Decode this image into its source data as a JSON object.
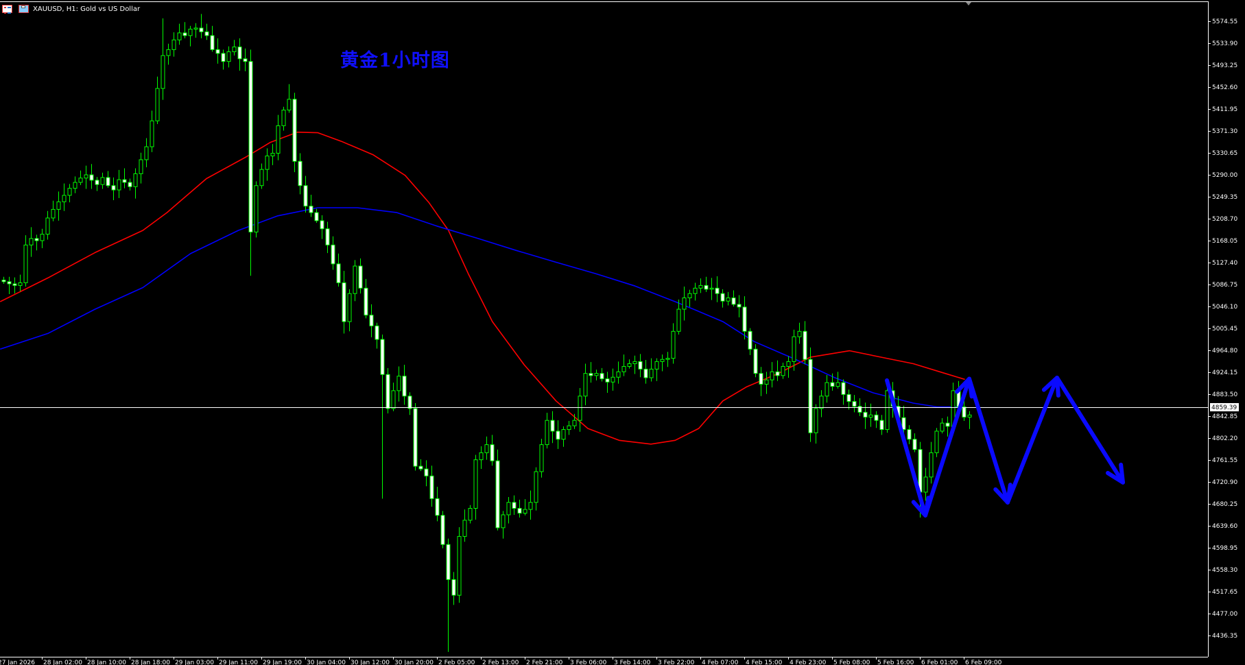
{
  "header": {
    "title": "XAUUSD, H1:  Gold vs US Dollar",
    "icons": [
      "chart-list-icon",
      "symbol-properties-icon"
    ]
  },
  "annotation_title": "黄金1小时图",
  "colors": {
    "background": "#000000",
    "bull_body": "#000000",
    "bear_body": "#ffffff",
    "candle_outline": "#00ff00",
    "ma_fast": "#ff0000",
    "ma_slow": "#0000ff",
    "annotation": "#0a0aff",
    "axis": "#ffffff"
  },
  "chart_data": {
    "type": "candlestick",
    "symbol": "XAUUSD",
    "timeframe": "H1",
    "grid": false,
    "current_price": "4859.39",
    "ylim": [
      4400,
      5600
    ],
    "y_ticks": [
      "5574.55",
      "5533.90",
      "5493.25",
      "5452.60",
      "5411.95",
      "5371.30",
      "5330.65",
      "5290.00",
      "5249.35",
      "5208.70",
      "5168.05",
      "5127.40",
      "5086.75",
      "5046.10",
      "5005.45",
      "4964.80",
      "4924.15",
      "4883.50",
      "4842.85",
      "4802.20",
      "4761.55",
      "4720.90",
      "4680.25",
      "4639.60",
      "4598.95",
      "4558.30",
      "4517.65",
      "4477.00",
      "4436.35"
    ],
    "x_first_label": "27 Jan 2026",
    "x_ticks": [
      "28 Jan 02:00",
      "28 Jan 10:00",
      "28 Jan 18:00",
      "29 Jan 03:00",
      "29 Jan 11:00",
      "29 Jan 19:00",
      "30 Jan 04:00",
      "30 Jan 12:00",
      "30 Jan 20:00",
      "2 Feb 05:00",
      "2 Feb 13:00",
      "2 Feb 21:00",
      "3 Feb 06:00",
      "3 Feb 14:00",
      "3 Feb 22:00",
      "4 Feb 07:00",
      "4 Feb 15:00",
      "4 Feb 23:00",
      "5 Feb 08:00",
      "5 Feb 16:00",
      "6 Feb 01:00",
      "6 Feb 09:00"
    ],
    "close": [
      5092,
      5088,
      5085,
      5090,
      5160,
      5172,
      5168,
      5180,
      5210,
      5226,
      5240,
      5252,
      5265,
      5276,
      5284,
      5290,
      5280,
      5272,
      5285,
      5270,
      5262,
      5281,
      5276,
      5268,
      5292,
      5318,
      5342,
      5390,
      5450,
      5511,
      5522,
      5540,
      5553,
      5548,
      5560,
      5562,
      5555,
      5548,
      5522,
      5515,
      5500,
      5518,
      5527,
      5505,
      5500,
      5184,
      5270,
      5300,
      5325,
      5330,
      5381,
      5410,
      5430,
      5315,
      5270,
      5232,
      5220,
      5205,
      5190,
      5160,
      5125,
      5090,
      5018,
      5070,
      5121,
      5080,
      5030,
      5010,
      4985,
      4920,
      4857,
      4890,
      4917,
      4880,
      4857,
      4750,
      4745,
      4732,
      4690,
      4659,
      4605,
      4540,
      4511,
      4620,
      4650,
      4672,
      4762,
      4775,
      4790,
      4760,
      4636,
      4660,
      4683,
      4672,
      4663,
      4670,
      4683,
      4740,
      4790,
      4835,
      4815,
      4800,
      4818,
      4825,
      4835,
      4880,
      4922,
      4918,
      4922,
      4912,
      4906,
      4915,
      4925,
      4935,
      4940,
      4944,
      4930,
      4914,
      4930,
      4944,
      4948,
      4950,
      5000,
      5041,
      5062,
      5070,
      5080,
      5085,
      5078,
      5080,
      5070,
      5056,
      5062,
      5050,
      5045,
      5000,
      4967,
      4922,
      4902,
      4910,
      4925,
      4918,
      4935,
      4944,
      4990,
      5000,
      4948,
      4812,
      4857,
      4880,
      4905,
      4898,
      4905,
      4883,
      4870,
      4861,
      4850,
      4841,
      4845,
      4835,
      4818,
      4890,
      4861,
      4840,
      4818,
      4800,
      4781,
      4702,
      4730,
      4775,
      4815,
      4830,
      4824,
      4890,
      4860,
      4841,
      4845
    ],
    "wick_extremes": [
      {
        "bar": 29,
        "high": 5580
      },
      {
        "bar": 36,
        "high": 5588
      },
      {
        "bar": 45,
        "low": 5103
      },
      {
        "bar": 52,
        "high": 5458
      },
      {
        "bar": 69,
        "low": 4690
      },
      {
        "bar": 81,
        "low": 4406
      },
      {
        "bar": 147,
        "low": 4795
      },
      {
        "bar": 167,
        "low": 4655
      }
    ],
    "series": [
      {
        "points": [
          [
            -0.6,
            5055
          ],
          [
            8.1,
            5099
          ],
          [
            16.7,
            5146
          ],
          [
            25.4,
            5187
          ],
          [
            29.8,
            5220
          ],
          [
            37,
            5283
          ],
          [
            44.2,
            5323
          ],
          [
            48.6,
            5350
          ],
          [
            53.6,
            5369
          ],
          [
            57.3,
            5368
          ],
          [
            61.6,
            5352
          ],
          [
            67.4,
            5327
          ],
          [
            73.2,
            5289
          ],
          [
            77.5,
            5239
          ],
          [
            81.1,
            5187
          ],
          [
            84.7,
            5107
          ],
          [
            89.1,
            5018
          ],
          [
            94.9,
            4938
          ],
          [
            100.7,
            4871
          ],
          [
            106.5,
            4820
          ],
          [
            112.2,
            4798
          ],
          [
            118,
            4791
          ],
          [
            122.4,
            4798
          ],
          [
            126.7,
            4820
          ],
          [
            131.1,
            4871
          ],
          [
            135.4,
            4897
          ],
          [
            141.2,
            4922
          ],
          [
            147,
            4952
          ],
          [
            154.2,
            4964
          ],
          [
            160,
            4952
          ],
          [
            165.8,
            4940
          ],
          [
            171.6,
            4922
          ],
          [
            175.2,
            4911
          ]
        ]
      },
      {
        "points": [
          [
            -0.6,
            4967
          ],
          [
            8.1,
            4996
          ],
          [
            16.7,
            5041
          ],
          [
            25.4,
            5081
          ],
          [
            34.1,
            5144
          ],
          [
            42.8,
            5187
          ],
          [
            50,
            5214
          ],
          [
            57.3,
            5229
          ],
          [
            64.5,
            5229
          ],
          [
            71.7,
            5220
          ],
          [
            79,
            5195
          ],
          [
            86.2,
            5173
          ],
          [
            93.4,
            5150
          ],
          [
            100.7,
            5128
          ],
          [
            107.9,
            5107
          ],
          [
            115.1,
            5084
          ],
          [
            122.4,
            5055
          ],
          [
            126.7,
            5037
          ],
          [
            131.1,
            5018
          ],
          [
            136.8,
            4981
          ],
          [
            144.1,
            4949
          ],
          [
            151.3,
            4915
          ],
          [
            158.5,
            4886
          ],
          [
            165.8,
            4867
          ],
          [
            170.1,
            4860
          ],
          [
            175.2,
            4860
          ]
        ]
      }
    ],
    "annotation_path": [
      [
        161,
        4909
      ],
      [
        168,
        4659
      ],
      [
        176,
        4912
      ],
      [
        183,
        4683
      ],
      [
        192,
        4914
      ],
      [
        204,
        4720
      ]
    ]
  }
}
